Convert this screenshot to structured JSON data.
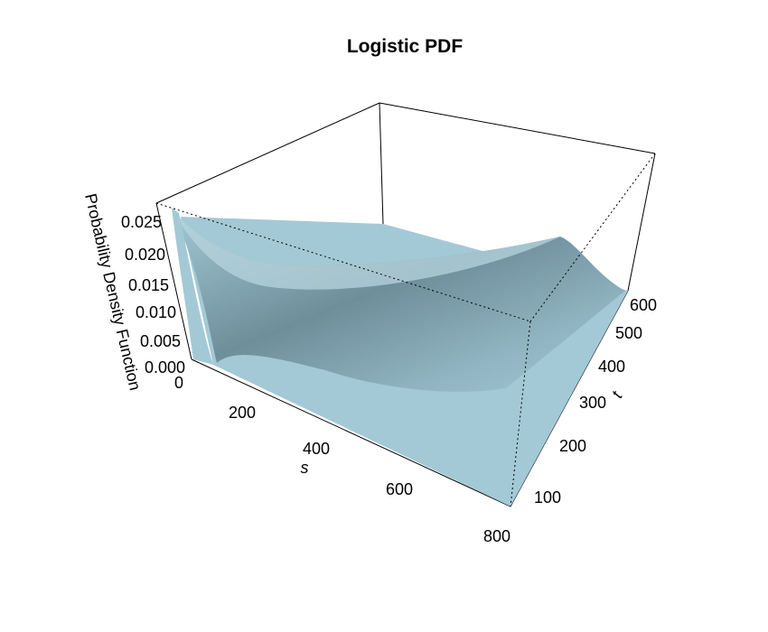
{
  "chart_data": {
    "type": "surface3d",
    "title": "Logistic PDF",
    "xlabel": "s",
    "ylabel": "t",
    "zlabel": "Probability Density Function",
    "x_ticks": [
      "0",
      "200",
      "400",
      "600",
      "800"
    ],
    "y_ticks": [
      "100",
      "200",
      "300",
      "400",
      "500",
      "600"
    ],
    "z_ticks": [
      "0.000",
      "0.005",
      "0.010",
      "0.015",
      "0.020",
      "0.025"
    ],
    "xlim": [
      0,
      800
    ],
    "ylim": [
      50,
      650
    ],
    "zlim": [
      0,
      0.027
    ],
    "peak_density": 0.025,
    "surface_color": "#a3c9d6",
    "shade_color": "#6e8e9a",
    "grid": false
  }
}
